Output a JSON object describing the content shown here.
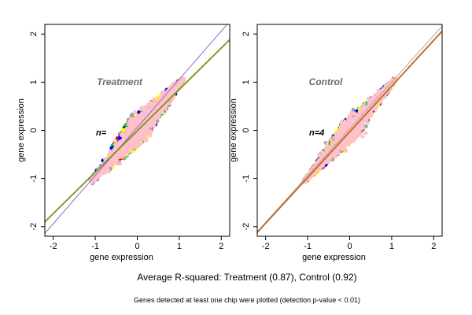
{
  "figure": {
    "caption": "Average R-squared: Treatment (0.87), Control (0.92)",
    "footnote": "Genes detected at least one chip were plotted (detection p-value < 0.01)"
  },
  "chart_data": [
    {
      "type": "scatter",
      "title": "Treatment",
      "annotation": "n=",
      "xlabel": "gene expression",
      "ylabel": "gene expression",
      "xlim": [
        -2.2,
        2.2
      ],
      "ylim": [
        -2.2,
        2.2
      ],
      "xticks": [
        "-2",
        "-1",
        "0",
        "1",
        "2"
      ],
      "yticks": [
        "-2",
        "-1",
        "0",
        "1",
        "2"
      ],
      "grid": false,
      "cloud": {
        "center": [
          0,
          0
        ],
        "x_range": [
          -1.1,
          1.1
        ],
        "spread": 0.28
      },
      "series": [
        {
          "color": "#ff0000"
        },
        {
          "color": "#00dd00"
        },
        {
          "color": "#0000ff"
        },
        {
          "color": "#ffff00"
        },
        {
          "color": "#a0a0a0"
        },
        {
          "color": "#ffc0cb"
        }
      ],
      "lines": [
        {
          "color": "#9966cc",
          "slope": 1.0,
          "intercept": 0.06
        },
        {
          "color": "#33aa33",
          "slope": 0.86,
          "intercept": 0.0
        },
        {
          "color": "#aa8800",
          "slope": 0.86,
          "intercept": -0.02
        }
      ]
    },
    {
      "type": "scatter",
      "title": "Control",
      "annotation": "n=4",
      "xlabel": "gene expression",
      "ylabel": "gene expression",
      "xlim": [
        -2.2,
        2.2
      ],
      "ylim": [
        -2.2,
        2.2
      ],
      "xticks": [
        "-2",
        "-1",
        "0",
        "1",
        "2"
      ],
      "yticks": [
        "-2",
        "-1",
        "0",
        "1",
        "2"
      ],
      "grid": false,
      "cloud": {
        "center": [
          0,
          0
        ],
        "x_range": [
          -1.1,
          1.1
        ],
        "spread": 0.22
      },
      "series": [
        {
          "color": "#ff0000"
        },
        {
          "color": "#00dd00"
        },
        {
          "color": "#0000ff"
        },
        {
          "color": "#ffff00"
        },
        {
          "color": "#a0a0a0"
        },
        {
          "color": "#ffc0cb"
        }
      ],
      "lines": [
        {
          "color": "#aaaaaa",
          "slope": 0.97,
          "intercept": 0.03
        },
        {
          "color": "#ff6600",
          "slope": 0.95,
          "intercept": -0.02
        },
        {
          "color": "#996633",
          "slope": 0.95,
          "intercept": -0.04
        }
      ]
    }
  ]
}
